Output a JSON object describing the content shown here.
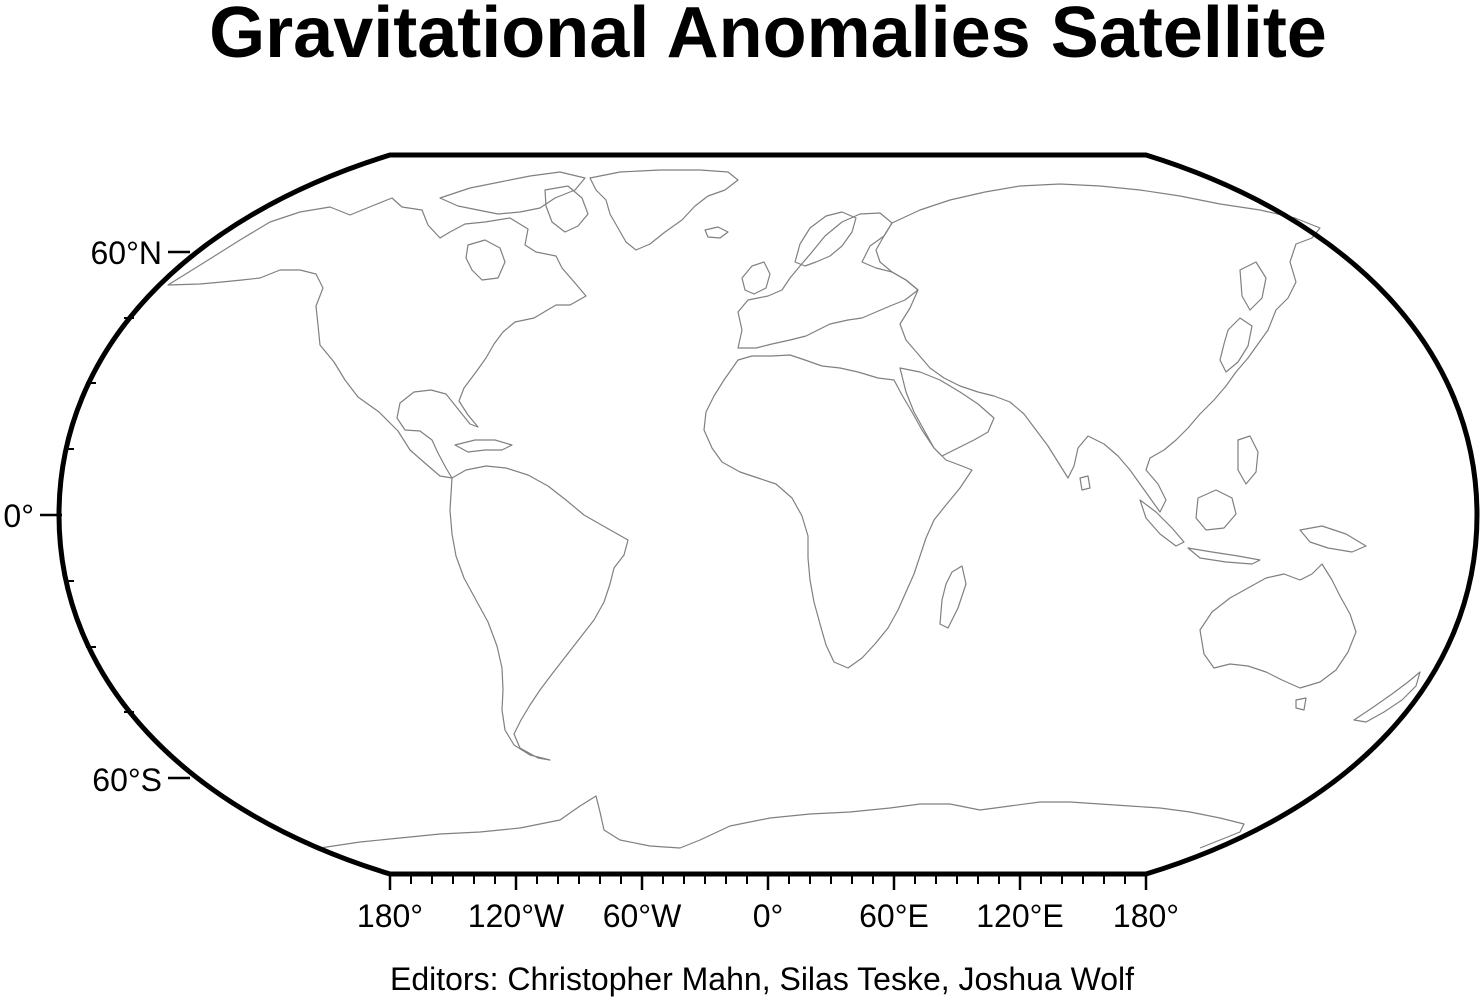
{
  "title": "Gravitational Anomalies Satellite",
  "credit": "Editors: Christopher Mahn, Silas Teske, Joshua Wolf",
  "map": {
    "projection": "winkel-tripel",
    "frame_color": "#000000",
    "coastline_color": "#808080",
    "background": "#ffffff",
    "lon_range": [
      -180,
      180
    ],
    "lat_range": [
      -90,
      90
    ]
  },
  "axes": {
    "lat_labels": [
      {
        "lat": 60,
        "text": "60°N"
      },
      {
        "lat": 0,
        "text": "0°"
      },
      {
        "lat": -60,
        "text": "60°S"
      }
    ],
    "lon_labels": [
      {
        "lon": -180,
        "text": "180°"
      },
      {
        "lon": -120,
        "text": "120°W"
      },
      {
        "lon": -60,
        "text": "60°W"
      },
      {
        "lon": 0,
        "text": "0°"
      },
      {
        "lon": 60,
        "text": "60°E"
      },
      {
        "lon": 120,
        "text": "120°E"
      },
      {
        "lon": 180,
        "text": "180°"
      }
    ]
  }
}
